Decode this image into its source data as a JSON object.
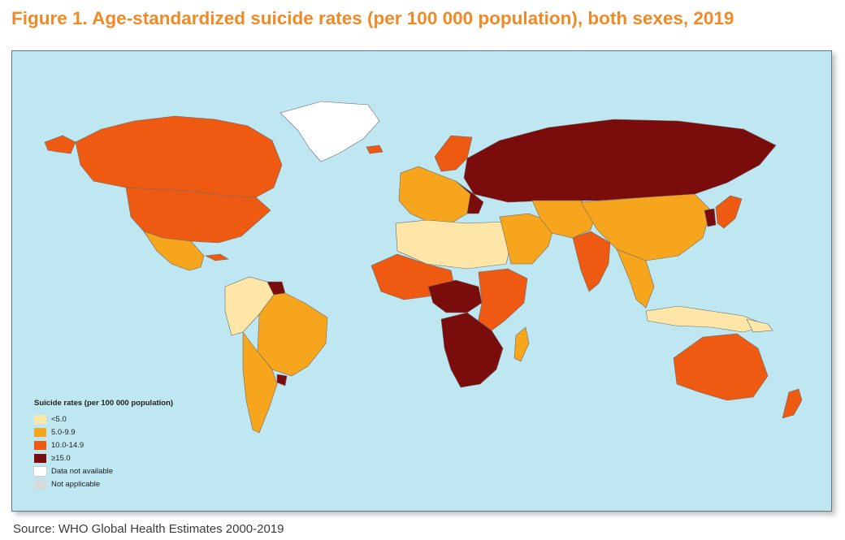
{
  "figure": {
    "title": "Figure 1. Age-standardized suicide rates (per 100 000 population), both sexes, 2019",
    "source": "Source: WHO Global Health Estimates 2000-2019"
  },
  "map": {
    "ocean_color": "#bfe7f2",
    "legend": {
      "title": "Suicide rates (per 100 000 population)",
      "items": [
        {
          "label": "<5.0",
          "color": "#fde6a8"
        },
        {
          "label": "5.0-9.9",
          "color": "#f7a51d"
        },
        {
          "label": "10.0-14.9",
          "color": "#ee5a12"
        },
        {
          "label": "≥15.0",
          "color": "#7a0c0c"
        },
        {
          "label": "Data not available",
          "color": "#ffffff"
        },
        {
          "label": "Not applicable",
          "color": "#d9d9d9"
        }
      ]
    },
    "regions": [
      {
        "name": "Alaska",
        "category": "10.0-14.9"
      },
      {
        "name": "Canada",
        "category": "10.0-14.9"
      },
      {
        "name": "United States",
        "category": "10.0-14.9"
      },
      {
        "name": "Greenland",
        "category": "Data not available"
      },
      {
        "name": "Mexico",
        "category": "5.0-9.9"
      },
      {
        "name": "Cuba",
        "category": "10.0-14.9"
      },
      {
        "name": "Northern South America",
        "category": "<5.0"
      },
      {
        "name": "Guyana/Suriname",
        "category": "≥15.0"
      },
      {
        "name": "Brazil",
        "category": "5.0-9.9"
      },
      {
        "name": "Southern South America",
        "category": "5.0-9.9"
      },
      {
        "name": "Uruguay",
        "category": "≥15.0"
      },
      {
        "name": "Iceland",
        "category": "10.0-14.9"
      },
      {
        "name": "Scandinavia",
        "category": "10.0-14.9"
      },
      {
        "name": "Western Europe",
        "category": "5.0-9.9"
      },
      {
        "name": "Russia",
        "category": "≥15.0"
      },
      {
        "name": "Eastern Europe",
        "category": "≥15.0"
      },
      {
        "name": "North Africa",
        "category": "<5.0"
      },
      {
        "name": "Middle East",
        "category": "5.0-9.9"
      },
      {
        "name": "Central Asia",
        "category": "5.0-9.9"
      },
      {
        "name": "China",
        "category": "5.0-9.9"
      },
      {
        "name": "India",
        "category": "10.0-14.9"
      },
      {
        "name": "Korea",
        "category": "≥15.0"
      },
      {
        "name": "Japan",
        "category": "10.0-14.9"
      },
      {
        "name": "West Africa",
        "category": "10.0-14.9"
      },
      {
        "name": "Central Africa",
        "category": "≥15.0"
      },
      {
        "name": "East Africa",
        "category": "10.0-14.9"
      },
      {
        "name": "Southern Africa",
        "category": "≥15.0"
      },
      {
        "name": "Madagascar",
        "category": "5.0-9.9"
      },
      {
        "name": "Southeast Asia",
        "category": "5.0-9.9"
      },
      {
        "name": "Indonesia",
        "category": "<5.0"
      },
      {
        "name": "Papua New Guinea",
        "category": "<5.0"
      },
      {
        "name": "Australia",
        "category": "10.0-14.9"
      },
      {
        "name": "New Zealand",
        "category": "10.0-14.9"
      }
    ]
  }
}
